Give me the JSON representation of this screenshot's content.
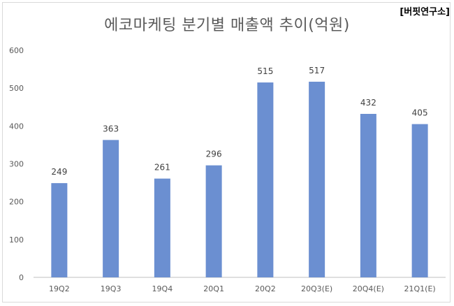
{
  "header": {
    "title": "에코마케팅 분기별 매출액 추이(억원)",
    "source": "[버핏연구소]"
  },
  "colors": {
    "bar": "#6b8fd1",
    "grid": "#d9d9d9",
    "axis": "#bfbfbf",
    "text": "#595959"
  },
  "chart_data": {
    "type": "bar",
    "title": "에코마케팅 분기별 매출액 추이(억원)",
    "categories": [
      "19Q2",
      "19Q3",
      "19Q4",
      "20Q1",
      "20Q2",
      "20Q3(E)",
      "20Q4(E)",
      "21Q1(E)"
    ],
    "values": [
      249,
      363,
      261,
      296,
      515,
      517,
      432,
      405
    ],
    "ylim": [
      0,
      600
    ],
    "yticks": [
      0,
      100,
      200,
      300,
      400,
      500,
      600
    ],
    "grid": false,
    "legend": "none",
    "xlabel": "",
    "ylabel": ""
  }
}
